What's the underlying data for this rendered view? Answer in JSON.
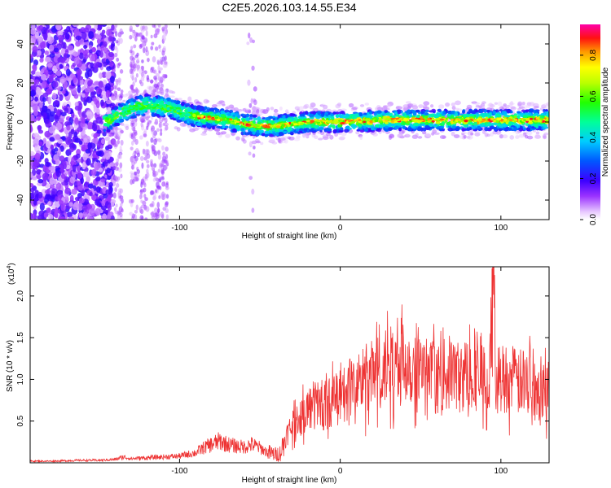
{
  "chart_data": [
    {
      "type": "heatmap",
      "title": "C2E5.2026.103.14.55.E34",
      "xlabel": "Height of straight line (km)",
      "ylabel": "Frequency (Hz)",
      "xlim": [
        -193,
        130
      ],
      "ylim": [
        -50,
        50
      ],
      "x_ticks": [
        -100,
        0,
        100
      ],
      "x_tick_labels": [
        "-100",
        "0",
        "100"
      ],
      "y_ticks": [
        -40,
        -20,
        0,
        20,
        40
      ],
      "y_tick_labels": [
        "-40",
        "-20",
        "0",
        "20",
        "40"
      ],
      "track": {
        "x": [
          -145,
          -140,
          -135,
          -130,
          -125,
          -120,
          -115,
          -110,
          -105,
          -100,
          -90,
          -80,
          -70,
          -60,
          -50,
          -40,
          -30,
          -20,
          -10,
          0,
          10,
          20,
          30,
          40,
          50,
          60,
          70,
          80,
          90,
          100,
          110,
          120,
          130
        ],
        "freq_hz": [
          0,
          3,
          5,
          7,
          8,
          9,
          8,
          8,
          7,
          5,
          3,
          2,
          1,
          -1,
          -2,
          -2,
          -1,
          0,
          0,
          0,
          0.5,
          0.5,
          1,
          1,
          1,
          1,
          1,
          1,
          1,
          1,
          1,
          1,
          1
        ]
      },
      "colorbar": {
        "label": "Normalized spectral amplitude",
        "range": [
          0,
          0.95
        ],
        "ticks": [
          0.0,
          0.2,
          0.4,
          0.6,
          0.8
        ],
        "tick_labels": [
          "0.0",
          "0.2",
          "0.4",
          "0.6",
          "0.8"
        ]
      }
    },
    {
      "type": "line",
      "title": "",
      "xlabel": "Height of straight line (km)",
      "ylabel": "SNR (10 * v/v)",
      "multiplier_label": "(x10",
      "multiplier_exp": "4",
      "multiplier_close": ")",
      "xlim": [
        -193,
        130
      ],
      "ylim": [
        0,
        2.35
      ],
      "x_ticks": [
        -100,
        0,
        100
      ],
      "x_tick_labels": [
        "-100",
        "0",
        "100"
      ],
      "y_ticks": [
        0.5,
        1.0,
        1.5,
        2.0
      ],
      "y_tick_labels": [
        "0.5",
        "1.0",
        "1.5",
        "2.0"
      ],
      "color": "#ee3333",
      "series": [
        {
          "name": "SNR",
          "x": [
            -193,
            -180,
            -160,
            -150,
            -140,
            -135,
            -130,
            -120,
            -110,
            -100,
            -90,
            -85,
            -80,
            -75,
            -70,
            -65,
            -60,
            -55,
            -50,
            -45,
            -40,
            -37,
            -35,
            -33,
            -30,
            -25,
            -20,
            -15,
            -10,
            -5,
            0,
            5,
            10,
            15,
            20,
            25,
            30,
            35,
            40,
            45,
            50,
            55,
            60,
            65,
            70,
            75,
            80,
            85,
            90,
            93,
            95,
            97,
            100,
            105,
            110,
            115,
            120,
            125,
            130
          ],
          "values": [
            0.02,
            0.02,
            0.03,
            0.03,
            0.04,
            0.07,
            0.05,
            0.06,
            0.07,
            0.08,
            0.12,
            0.18,
            0.22,
            0.26,
            0.22,
            0.2,
            0.19,
            0.22,
            0.18,
            0.12,
            0.1,
            0.12,
            0.25,
            0.35,
            0.45,
            0.55,
            0.65,
            0.72,
            0.68,
            0.75,
            0.78,
            0.85,
            0.95,
            1.0,
            1.05,
            1.1,
            1.15,
            1.2,
            1.25,
            1.15,
            1.1,
            1.05,
            1.0,
            1.05,
            1.1,
            1.0,
            1.1,
            1.05,
            1.0,
            0.95,
            2.25,
            1.1,
            1.0,
            1.05,
            0.95,
            0.98,
            1.05,
            0.9,
            0.92
          ]
        }
      ]
    }
  ],
  "colors": {
    "line": "#ee3333",
    "axis": "#000000",
    "background": "#ffffff"
  }
}
